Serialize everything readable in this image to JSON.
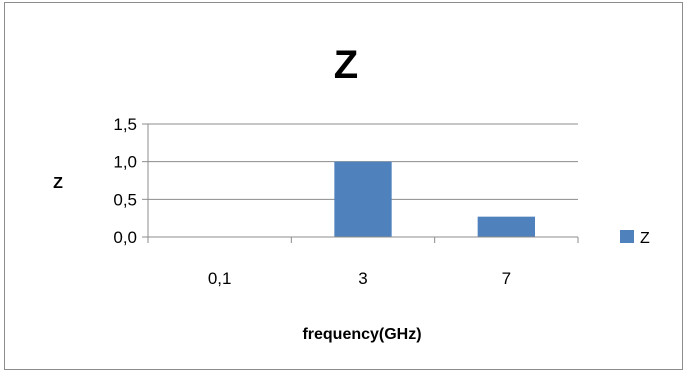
{
  "chart_data": {
    "type": "bar",
    "title": "Z",
    "xlabel": "frequency(GHz)",
    "ylabel": "Z",
    "categories": [
      "0,1",
      "3",
      "7"
    ],
    "series": [
      {
        "name": "Z",
        "values": [
          0.0,
          1.0,
          0.27
        ],
        "color": "#4f81bd"
      }
    ],
    "ylim": [
      0.0,
      1.5
    ],
    "yticks": [
      "0,0",
      "0,5",
      "1,0",
      "1,5"
    ],
    "grid": true,
    "legend": "right"
  }
}
